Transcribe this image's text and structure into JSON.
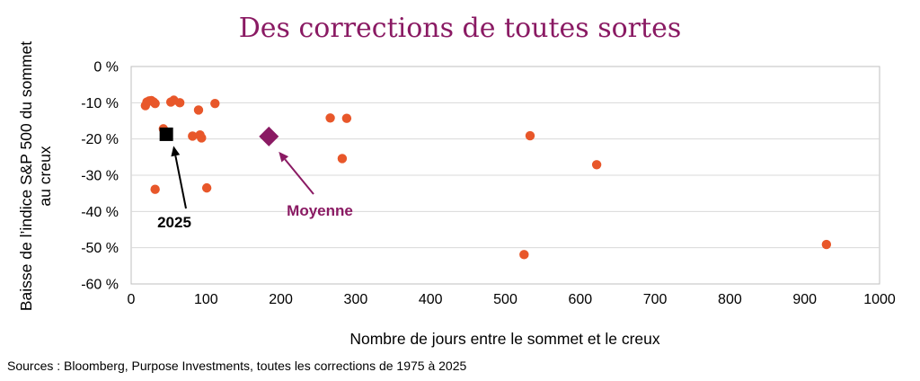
{
  "colors": {
    "title": "#8a1a63",
    "points": "#e8572a",
    "highlight_2025": "#000000",
    "average": "#8a1a63",
    "grid": "#d9d9d9",
    "axis": "#bfbfbf"
  },
  "source": "Sources : Bloomberg, Purpose Investments, toutes les corrections de 1975 à 2025",
  "chart_data": {
    "type": "scatter",
    "title": "Des corrections de toutes sortes",
    "xlabel": "Nombre de jours entre le sommet et le creux",
    "ylabel_lines": [
      "Baisse de l’indice S&P 500 du sommet",
      "au creux"
    ],
    "xlim": [
      0,
      1000
    ],
    "ylim": [
      -60,
      0
    ],
    "x_ticks": [
      0,
      100,
      200,
      300,
      400,
      500,
      600,
      700,
      800,
      900,
      1000
    ],
    "x_tick_labels": [
      "0",
      "100",
      "200",
      "300",
      "400",
      "500",
      "600",
      "700",
      "800",
      "900",
      "1000"
    ],
    "y_ticks": [
      0,
      -10,
      -20,
      -30,
      -40,
      -50,
      -60
    ],
    "y_tick_labels": [
      "0 %",
      "-10 %",
      "-20 %",
      "-30 %",
      "-40 %",
      "-50 %",
      "-60 %"
    ],
    "grid": "horizontal",
    "points": [
      {
        "x": 19,
        "y": -10.8
      },
      {
        "x": 21,
        "y": -9.8
      },
      {
        "x": 24,
        "y": -9.5
      },
      {
        "x": 27,
        "y": -9.4
      },
      {
        "x": 30,
        "y": -9.8
      },
      {
        "x": 32,
        "y": -10.2
      },
      {
        "x": 32,
        "y": -33.9
      },
      {
        "x": 43,
        "y": -17.2
      },
      {
        "x": 53,
        "y": -9.8
      },
      {
        "x": 57,
        "y": -9.3
      },
      {
        "x": 65,
        "y": -10.0
      },
      {
        "x": 82,
        "y": -19.2
      },
      {
        "x": 90,
        "y": -12.0
      },
      {
        "x": 92,
        "y": -18.9
      },
      {
        "x": 94,
        "y": -19.7
      },
      {
        "x": 101,
        "y": -33.5
      },
      {
        "x": 112,
        "y": -10.2
      },
      {
        "x": 266,
        "y": -14.2
      },
      {
        "x": 282,
        "y": -25.4
      },
      {
        "x": 288,
        "y": -14.3
      },
      {
        "x": 525,
        "y": -51.9
      },
      {
        "x": 533,
        "y": -19.1
      },
      {
        "x": 622,
        "y": -27.1
      },
      {
        "x": 929,
        "y": -49.1
      }
    ],
    "highlight_2025": {
      "x": 47,
      "y": -18.7,
      "label": "2025"
    },
    "average": {
      "x": 184,
      "y": -19.3,
      "label": "Moyenne"
    }
  }
}
